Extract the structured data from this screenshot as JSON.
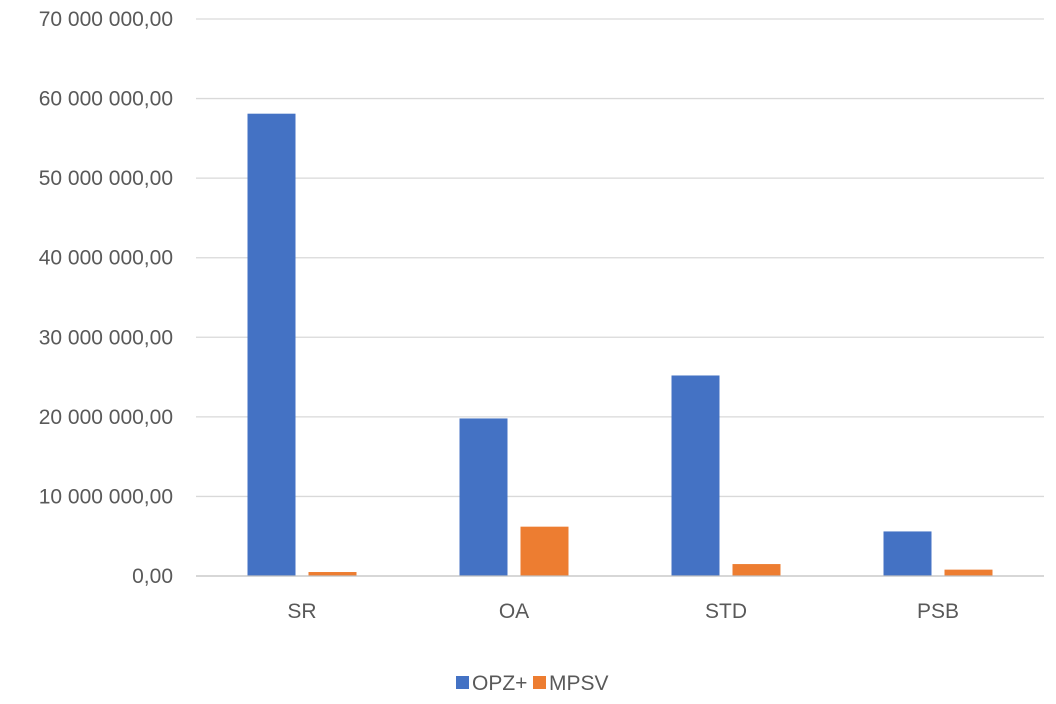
{
  "chart_data": {
    "type": "bar",
    "categories": [
      "SR",
      "OA",
      "STD",
      "PSB"
    ],
    "series": [
      {
        "name": "OPZ+",
        "color": "#4472C4",
        "values": [
          58100000,
          19800000,
          25200000,
          5600000
        ]
      },
      {
        "name": "MPSV",
        "color": "#ED7D31",
        "values": [
          500000,
          6200000,
          1500000,
          800000
        ]
      }
    ],
    "yticks": [
      {
        "value": 0,
        "label": "0,00"
      },
      {
        "value": 10000000,
        "label": "10 000 000,00"
      },
      {
        "value": 20000000,
        "label": "20 000 000,00"
      },
      {
        "value": 30000000,
        "label": "30 000 000,00"
      },
      {
        "value": 40000000,
        "label": "40 000 000,00"
      },
      {
        "value": 50000000,
        "label": "50 000 000,00"
      },
      {
        "value": 60000000,
        "label": "60 000 000,00"
      },
      {
        "value": 70000000,
        "label": "70 000 000,00"
      }
    ],
    "ylim": [
      0,
      70000000
    ],
    "grid": true,
    "legend_position": "bottom",
    "title": "",
    "xlabel": "",
    "ylabel": ""
  }
}
